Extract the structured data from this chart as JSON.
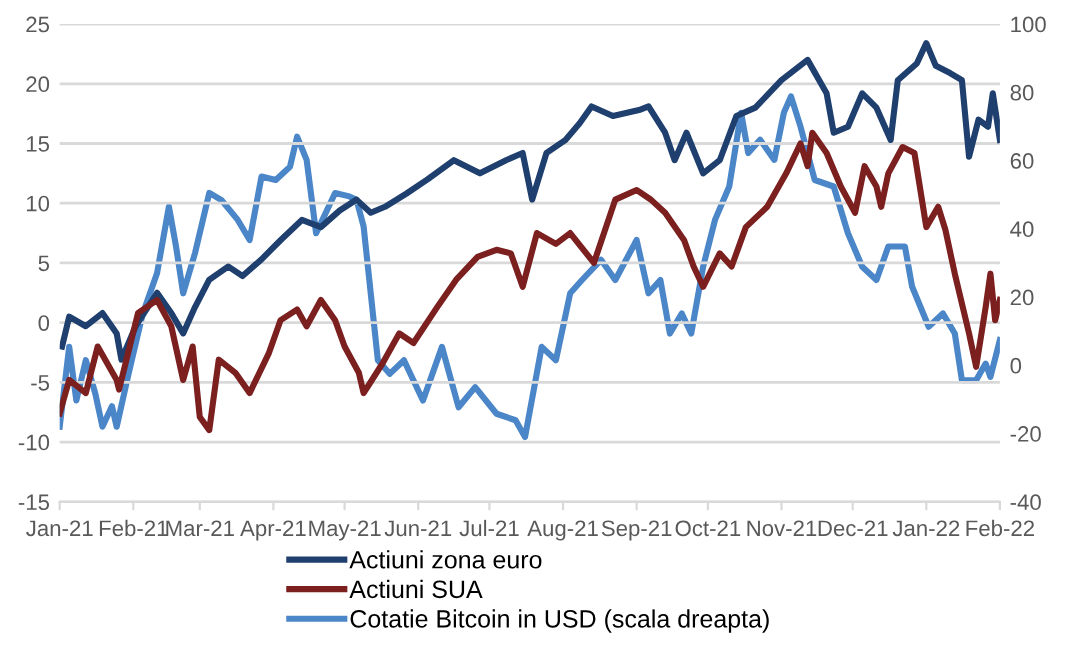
{
  "chart_data": {
    "type": "line",
    "legend": "bottom",
    "grid": "y",
    "marker": "none",
    "line_style": "solid",
    "xlim": [
      "2021-01-01",
      "2022-02-01"
    ],
    "xticks": [
      {
        "value": "2021-01-01",
        "label": "Jan-21"
      },
      {
        "value": "2021-02-01",
        "label": "Feb-21"
      },
      {
        "value": "2021-03-01",
        "label": "Mar-21"
      },
      {
        "value": "2021-04-01",
        "label": "Apr-21"
      },
      {
        "value": "2021-05-01",
        "label": "May-21"
      },
      {
        "value": "2021-06-01",
        "label": "Jun-21"
      },
      {
        "value": "2021-07-01",
        "label": "Jul-21"
      },
      {
        "value": "2021-08-01",
        "label": "Aug-21"
      },
      {
        "value": "2021-09-01",
        "label": "Sep-21"
      },
      {
        "value": "2021-10-01",
        "label": "Oct-21"
      },
      {
        "value": "2021-11-01",
        "label": "Nov-21"
      },
      {
        "value": "2021-12-01",
        "label": "Dec-21"
      },
      {
        "value": "2022-01-01",
        "label": "Jan-22"
      },
      {
        "value": "2022-02-01",
        "label": "Feb-22"
      }
    ],
    "ylim": [
      -15,
      25
    ],
    "yticks": [
      -15,
      -10,
      -5,
      0,
      5,
      10,
      15,
      20,
      25
    ],
    "y2lim": [
      -40,
      100
    ],
    "y2ticks": [
      -40,
      -20,
      0,
      20,
      40,
      60,
      80,
      100
    ],
    "series": [
      {
        "name": "Actiuni zona euro",
        "color": "#1f3f6e",
        "x": [
          "2021-01-02",
          "2021-01-05",
          "2021-01-12",
          "2021-01-19",
          "2021-01-25",
          "2021-01-27",
          "2021-02-02",
          "2021-02-11",
          "2021-02-17",
          "2021-02-22",
          "2021-02-27",
          "2021-03-05",
          "2021-03-13",
          "2021-03-19",
          "2021-03-27",
          "2021-04-04",
          "2021-04-13",
          "2021-04-21",
          "2021-04-29",
          "2021-05-06",
          "2021-05-12",
          "2021-05-18",
          "2021-05-27",
          "2021-06-05",
          "2021-06-16",
          "2021-06-27",
          "2021-07-08",
          "2021-07-15",
          "2021-07-19",
          "2021-07-25",
          "2021-08-02",
          "2021-08-08",
          "2021-08-13",
          "2021-08-22",
          "2021-09-02",
          "2021-09-06",
          "2021-09-13",
          "2021-09-17",
          "2021-09-22",
          "2021-09-29",
          "2021-10-06",
          "2021-10-13",
          "2021-10-21",
          "2021-11-01",
          "2021-11-12",
          "2021-11-20",
          "2021-11-23",
          "2021-11-29",
          "2021-12-05",
          "2021-12-11",
          "2021-12-17",
          "2021-12-20",
          "2021-12-28",
          "2022-01-01",
          "2022-01-05",
          "2022-01-11",
          "2022-01-16",
          "2022-01-19",
          "2022-01-23",
          "2022-01-27",
          "2022-01-29",
          "2022-02-01"
        ],
        "values": [
          -2,
          0.5,
          -0.3,
          0.8,
          -0.9,
          -3.1,
          -0.3,
          2.5,
          0.8,
          -0.9,
          1.3,
          3.6,
          4.7,
          3.9,
          5.3,
          6.9,
          8.6,
          8.0,
          9.4,
          10.3,
          9.2,
          9.7,
          10.8,
          12,
          13.6,
          12.5,
          13.6,
          14.2,
          10.3,
          14.2,
          15.3,
          16.7,
          18.1,
          17.3,
          17.8,
          18.1,
          15.9,
          13.6,
          15.9,
          12.5,
          13.6,
          17.3,
          18,
          20.3,
          22,
          19.2,
          15.9,
          16.4,
          19.2,
          18,
          15.3,
          20.3,
          21.7,
          23.4,
          21.5,
          20.9,
          20.3,
          13.9,
          17,
          16.4,
          19.2,
          15.3
        ]
      },
      {
        "name": "Actiuni SUA",
        "color": "#7b1f1f",
        "x": [
          "2021-01-01",
          "2021-01-05",
          "2021-01-12",
          "2021-01-17",
          "2021-01-25",
          "2021-01-26",
          "2021-02-03",
          "2021-02-11",
          "2021-02-17",
          "2021-02-22",
          "2021-02-26",
          "2021-03-01",
          "2021-03-05",
          "2021-03-09",
          "2021-03-16",
          "2021-03-22",
          "2021-03-30",
          "2021-04-04",
          "2021-04-11",
          "2021-04-15",
          "2021-04-21",
          "2021-04-27",
          "2021-05-01",
          "2021-05-07",
          "2021-05-09",
          "2021-05-17",
          "2021-05-24",
          "2021-05-30",
          "2021-06-09",
          "2021-06-17",
          "2021-06-26",
          "2021-07-04",
          "2021-07-10",
          "2021-07-15",
          "2021-07-21",
          "2021-07-29",
          "2021-08-04",
          "2021-08-14",
          "2021-08-23",
          "2021-09-01",
          "2021-09-07",
          "2021-09-13",
          "2021-09-21",
          "2021-09-25",
          "2021-09-29",
          "2021-10-06",
          "2021-10-11",
          "2021-10-17",
          "2021-10-26",
          "2021-11-03",
          "2021-11-09",
          "2021-11-12",
          "2021-11-14",
          "2021-11-20",
          "2021-11-26",
          "2021-12-02",
          "2021-12-06",
          "2021-12-11",
          "2021-12-13",
          "2021-12-16",
          "2021-12-22",
          "2021-12-27",
          "2022-01-01",
          "2022-01-06",
          "2022-01-09",
          "2022-01-13",
          "2022-01-19",
          "2022-01-22",
          "2022-01-26",
          "2022-01-28",
          "2022-01-30",
          "2022-02-01"
        ],
        "values": [
          -7.6,
          -4.8,
          -5.9,
          -2,
          -4.8,
          -5.6,
          0.8,
          1.9,
          -0.3,
          -4.8,
          -2,
          -7.9,
          -9,
          -3.1,
          -4.2,
          -5.9,
          -2.6,
          0.2,
          1.1,
          -0.3,
          1.9,
          0.2,
          -2,
          -4.2,
          -5.9,
          -3.4,
          -0.9,
          -1.7,
          1.3,
          3.6,
          5.5,
          6.1,
          5.8,
          3.0,
          7.5,
          6.6,
          7.5,
          5.0,
          10.3,
          11.1,
          10.3,
          9.2,
          6.9,
          4.7,
          3.0,
          5.8,
          4.7,
          8.0,
          9.7,
          12.5,
          15.0,
          13.1,
          15.9,
          14.2,
          11.4,
          9.2,
          13.1,
          11.4,
          9.7,
          12.5,
          14.7,
          14.2,
          8.0,
          9.7,
          7.8,
          4.1,
          -0.9,
          -3.7,
          1.3,
          4.1,
          0.2,
          1.9
        ]
      },
      {
        "name": "Cotatie Bitcoin in USD (scala dreapta)",
        "color": "#4a86c8",
        "axis": "y2",
        "x": [
          "2021-01-01",
          "2021-01-05",
          "2021-01-08",
          "2021-01-12",
          "2021-01-16",
          "2021-01-19",
          "2021-01-23",
          "2021-01-25",
          "2021-01-30",
          "2021-02-05",
          "2021-02-11",
          "2021-02-16",
          "2021-02-19",
          "2021-02-22",
          "2021-02-27",
          "2021-03-05",
          "2021-03-10",
          "2021-03-17",
          "2021-03-22",
          "2021-03-27",
          "2021-04-02",
          "2021-04-08",
          "2021-04-11",
          "2021-04-15",
          "2021-04-19",
          "2021-04-23",
          "2021-04-27",
          "2021-05-03",
          "2021-05-06",
          "2021-05-09",
          "2021-05-15",
          "2021-05-20",
          "2021-05-26",
          "2021-06-03",
          "2021-06-11",
          "2021-06-18",
          "2021-06-25",
          "2021-07-04",
          "2021-07-12",
          "2021-07-16",
          "2021-07-23",
          "2021-07-29",
          "2021-08-04",
          "2021-08-09",
          "2021-08-17",
          "2021-08-23",
          "2021-09-01",
          "2021-09-06",
          "2021-09-11",
          "2021-09-15",
          "2021-09-20",
          "2021-09-24",
          "2021-09-29",
          "2021-10-04",
          "2021-10-10",
          "2021-10-15",
          "2021-10-18",
          "2021-10-23",
          "2021-10-29",
          "2021-11-02",
          "2021-11-05",
          "2021-11-09",
          "2021-11-15",
          "2021-11-23",
          "2021-11-29",
          "2021-12-05",
          "2021-12-11",
          "2021-12-16",
          "2021-12-23",
          "2021-12-26",
          "2022-01-02",
          "2022-01-08",
          "2022-01-13",
          "2022-01-16",
          "2022-01-22",
          "2022-01-26",
          "2022-01-28",
          "2022-02-01"
        ],
        "values": [
          -18,
          5.4,
          -10.3,
          1.5,
          -8.3,
          -18,
          -12,
          -18,
          -2.5,
          15.2,
          27,
          46.5,
          34.8,
          21.1,
          32.9,
          50.5,
          48.5,
          42.6,
          36.7,
          55.3,
          54.3,
          58.2,
          67,
          60.2,
          38.7,
          44.6,
          50.5,
          49.5,
          48.5,
          40.7,
          1.5,
          -2.5,
          1.5,
          -10.3,
          5.4,
          -12.3,
          -6.4,
          -14.2,
          -16.1,
          -21,
          5.4,
          1.5,
          21.1,
          25,
          30.9,
          25,
          36.7,
          21.1,
          25,
          9.3,
          15.2,
          9.3,
          28.9,
          42.6,
          52.4,
          74,
          62.2,
          66.1,
          60.2,
          74,
          78.8,
          70,
          54.3,
          52.4,
          38.7,
          28.9,
          25,
          34.8,
          34.8,
          23.1,
          11.3,
          15.2,
          9.3,
          -4.4,
          -4.4,
          0.5,
          -3.4,
          7.4
        ]
      }
    ]
  }
}
